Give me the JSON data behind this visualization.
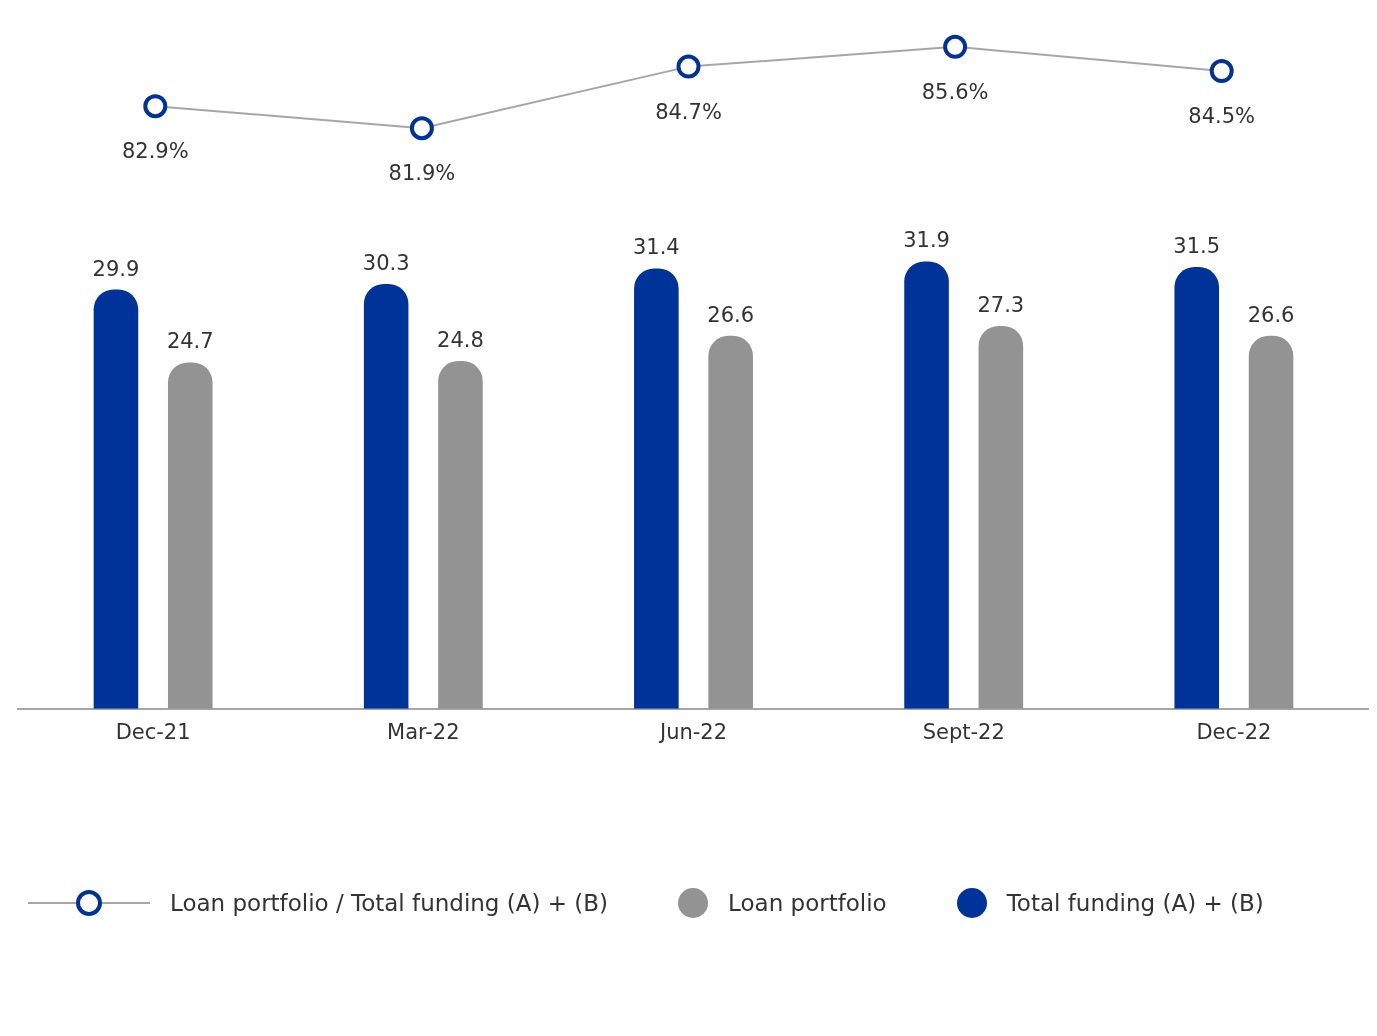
{
  "chart_data": [
    {
      "type": "line",
      "categories": [
        null,
        null,
        null,
        null,
        null
      ],
      "tick_labels": false,
      "grid": false,
      "marker": "circle",
      "legend": "bottom",
      "series": [
        {
          "name": "Loan portfolio / Total funding (A) + (B)",
          "color": "#a6a6a6",
          "values": [
            82.9,
            81.9,
            84.7,
            85.6,
            84.5
          ],
          "value_labels": [
            "82.9%",
            "81.9%",
            "84.7%",
            "85.6%",
            "84.5%"
          ]
        }
      ]
    },
    {
      "type": "bar",
      "categories": [
        "Dec-21",
        "Mar-22",
        "Jun-22",
        "Sept-22",
        "Dec-22"
      ],
      "tick_labels": "x",
      "grid": false,
      "legend": "bottom",
      "series": [
        {
          "name": "Total funding (A) + (B)",
          "color": "#003399",
          "values": [
            29.9,
            30.3,
            31.4,
            31.9,
            31.5
          ],
          "value_labels": [
            "29.9",
            "30.3",
            "31.4",
            "31.9",
            "31.5"
          ]
        },
        {
          "name": "Loan portfolio",
          "color": "#939393",
          "values": [
            24.7,
            24.8,
            26.6,
            27.3,
            26.6
          ],
          "value_labels": [
            "24.7",
            "24.8",
            "26.6",
            "27.3",
            "26.6"
          ]
        }
      ]
    }
  ]
}
